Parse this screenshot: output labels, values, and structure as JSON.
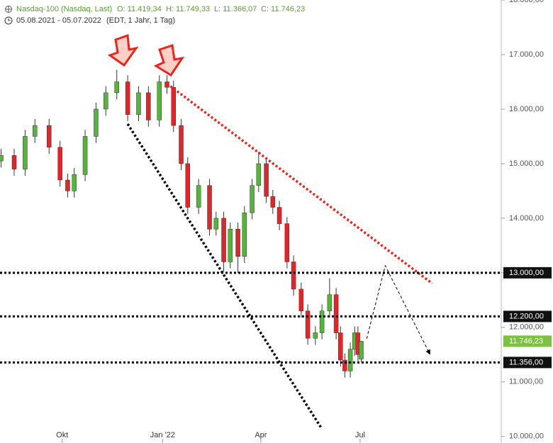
{
  "chart_data": {
    "type": "candlestick",
    "title": "Nasdaq-100 (Nasdaq, Last)",
    "ohlc_header": [
      "O: 11.419,34",
      "H: 11.749,33",
      "L: 11.366,07",
      "C: 11.746,23"
    ],
    "date_range": "05.08.2021 - 05.07.2022",
    "range_note": "(EDT, 1 Jahr, 1 Tag)",
    "up_color": "#58b33c",
    "down_color": "#e0262a",
    "xlim": [
      0,
      458
    ],
    "ylim": [
      9880,
      18000
    ],
    "xticks": [
      {
        "value": 57,
        "label": "Okt"
      },
      {
        "value": 149,
        "label": "Jan '22"
      },
      {
        "value": 239,
        "label": "Apr"
      },
      {
        "value": 330,
        "label": "Jul"
      }
    ],
    "yticks": [
      {
        "value": 10000,
        "label": "10.000,00"
      },
      {
        "value": 11000,
        "label": "11.000,00"
      },
      {
        "value": 12000,
        "label": "12.000,00"
      },
      {
        "value": 13000,
        "label": "13.000,00"
      },
      {
        "value": 14000,
        "label": "14.000,00"
      },
      {
        "value": 15000,
        "label": "15.000,00"
      },
      {
        "value": 16000,
        "label": "16.000,00"
      },
      {
        "value": 17000,
        "label": "17.000,00"
      },
      {
        "value": 18000,
        "label": "18.000,00"
      }
    ],
    "x": [
      1,
      13,
      23,
      32,
      45,
      55,
      62,
      68,
      78,
      88,
      97,
      107,
      117,
      127,
      136,
      146,
      153,
      159,
      166,
      172,
      182,
      192,
      198,
      205,
      211,
      218,
      224,
      231,
      237,
      244,
      250,
      256,
      263,
      269,
      276,
      282,
      289,
      295,
      302,
      308,
      312,
      316,
      321,
      325,
      328,
      331
    ],
    "open": [
      15050,
      15150,
      14900,
      15500,
      15700,
      15300,
      14700,
      14500,
      14800,
      15500,
      16000,
      16300,
      16500,
      15900,
      16300,
      15800,
      16500,
      16400,
      15700,
      15000,
      14200,
      14600,
      13800,
      14000,
      13200,
      13800,
      13300,
      14100,
      14600,
      15000,
      14400,
      14200,
      13900,
      13200,
      12700,
      12300,
      11800,
      11900,
      12300,
      12600,
      11900,
      11400,
      11200,
      11600,
      11900,
      11419
    ],
    "high": [
      15270,
      15270,
      15620,
      15820,
      15820,
      15420,
      14820,
      14920,
      15620,
      16120,
      16420,
      16720,
      16620,
      16420,
      16420,
      16620,
      16620,
      16520,
      15820,
      15120,
      14720,
      14720,
      14120,
      14120,
      13920,
      13920,
      14220,
      14720,
      15220,
      15120,
      14520,
      14320,
      14020,
      13320,
      12820,
      12420,
      12020,
      12420,
      12900,
      12720,
      12020,
      11520,
      11720,
      12020,
      12020,
      11749
    ],
    "low": [
      14930,
      14780,
      14780,
      15380,
      15180,
      14580,
      14380,
      14380,
      14680,
      15380,
      15880,
      16180,
      15780,
      15780,
      15680,
      15680,
      16280,
      15580,
      14880,
      14080,
      14080,
      13680,
      13680,
      13020,
      13080,
      13000,
      13180,
      13980,
      14480,
      14280,
      14080,
      13780,
      13080,
      12580,
      12180,
      11680,
      11680,
      11780,
      12180,
      11780,
      11280,
      11080,
      11080,
      11480,
      11380,
      11366
    ],
    "close": [
      15150,
      14900,
      15500,
      15700,
      15300,
      14700,
      14500,
      14800,
      15500,
      16000,
      16300,
      16500,
      15900,
      16300,
      15800,
      16500,
      16400,
      15700,
      15000,
      14200,
      14600,
      13800,
      14000,
      13200,
      13800,
      13300,
      14100,
      14600,
      15000,
      14400,
      14200,
      13900,
      13200,
      12700,
      12300,
      11800,
      11900,
      12300,
      12600,
      11900,
      11400,
      11200,
      11600,
      11900,
      11500,
      11746
    ],
    "levels": [
      {
        "value": 13000,
        "label": "13.000,00"
      },
      {
        "value": 12200,
        "label": "12.200,00"
      },
      {
        "value": 11356,
        "label": "11.356,00"
      }
    ],
    "last_price": {
      "value": 11746.23,
      "label": "11.746,23",
      "color": "#7dc142"
    },
    "trend_lines": [
      {
        "x": [
          153,
          396
        ],
        "y": [
          16468,
          12805
        ],
        "color": "#e8251e"
      },
      {
        "x": [
          117,
          294
        ],
        "y": [
          15727,
          10169
        ],
        "color": "#000000"
      }
    ],
    "forecast": {
      "x": [
        336,
        353,
        394
      ],
      "y": [
        11792,
        13130,
        11506
      ]
    }
  }
}
